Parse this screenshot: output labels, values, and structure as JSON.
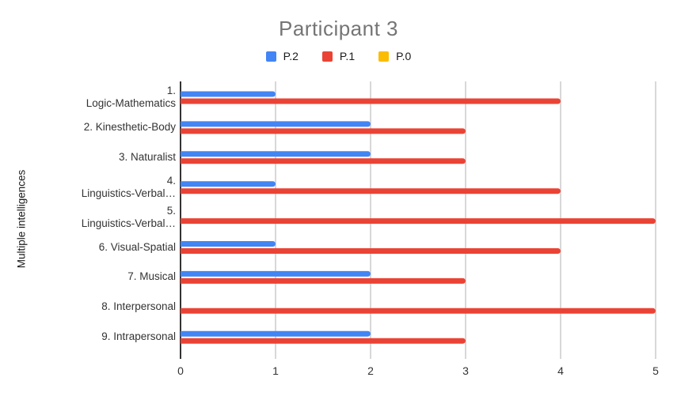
{
  "chart_data": {
    "type": "bar",
    "orientation": "horizontal",
    "title": "Participant 3",
    "xlabel": "",
    "ylabel": "Multiple intelligences",
    "categories": [
      "1.\nLogic-Mathematics",
      "2. Kinesthetic-Body",
      "3. Naturalist",
      "4.\nLinguistics-Verbal…",
      "5.\nLinguistics-Verbal…",
      "6. Visual-Spatial",
      "7. Musical",
      "8. Interpersonal",
      "9. Intrapersonal"
    ],
    "series": [
      {
        "name": "P.2",
        "color": "#4285F4",
        "values": [
          1,
          2,
          2,
          1,
          0,
          1,
          2,
          0,
          2
        ]
      },
      {
        "name": "P.1",
        "color": "#EA4335",
        "values": [
          4,
          3,
          3,
          4,
          5,
          4,
          3,
          5,
          3
        ]
      },
      {
        "name": "P.0",
        "color": "#FBBC04",
        "values": [
          0,
          0,
          0,
          0,
          0,
          0,
          0,
          0,
          0
        ]
      }
    ],
    "xlim": [
      0,
      5
    ],
    "x_ticks": [
      0,
      1,
      2,
      3,
      4,
      5
    ],
    "grid": true,
    "legend_position": "top",
    "colors": {
      "title": "#757575",
      "axis_text": "#333333",
      "category_text": "#333333",
      "gridline": "#cccccc",
      "axis_line": "#333333",
      "background": "#ffffff"
    }
  }
}
